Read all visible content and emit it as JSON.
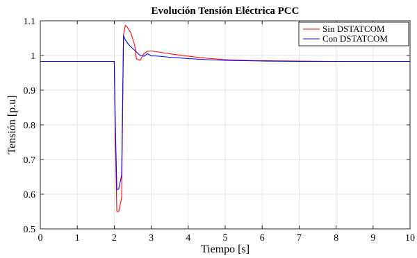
{
  "chart_data": {
    "type": "line",
    "title": "Evolución Tensión Eléctrica PCC",
    "xlabel": "Tiempo [s]",
    "ylabel": "Tensión [p.u]",
    "xlim": [
      0,
      10
    ],
    "ylim": [
      0.5,
      1.1
    ],
    "x_ticks": [
      0,
      1,
      2,
      3,
      4,
      5,
      6,
      7,
      8,
      9,
      10
    ],
    "y_ticks": [
      0.5,
      0.6,
      0.7,
      0.8,
      0.9,
      1,
      1.1
    ],
    "y_tick_labels": [
      "0.5",
      "0.6",
      "0.7",
      "0.8",
      "0.9",
      "1",
      "1.1"
    ],
    "grid": true,
    "legend_position": "top-right",
    "series": [
      {
        "name": "Sin DSTATCOM",
        "color": "#ff0000",
        "x": [
          0,
          1,
          2.0,
          2.03,
          2.07,
          2.12,
          2.2,
          2.25,
          2.3,
          2.35,
          2.45,
          2.55,
          2.6,
          2.7,
          2.8,
          2.9,
          3.0,
          3.2,
          3.5,
          4.0,
          4.5,
          5.0,
          5.5,
          6.0,
          7.0,
          8.0,
          9.0,
          10.0
        ],
        "y": [
          0.983,
          0.983,
          0.983,
          0.75,
          0.55,
          0.55,
          0.59,
          1.06,
          1.087,
          1.082,
          1.065,
          1.03,
          0.99,
          0.986,
          1.005,
          1.012,
          1.013,
          1.01,
          1.005,
          0.998,
          0.992,
          0.988,
          0.986,
          0.985,
          0.984,
          0.983,
          0.983,
          0.983
        ]
      },
      {
        "name": "Con DSTATCOM",
        "color": "#0000ff",
        "x": [
          0,
          1,
          2.0,
          2.03,
          2.07,
          2.12,
          2.2,
          2.25,
          2.3,
          2.4,
          2.5,
          2.6,
          2.7,
          2.8,
          2.9,
          3.0,
          3.2,
          3.5,
          4.0,
          4.5,
          5.0,
          5.5,
          6.0,
          7.0,
          8.0,
          9.0,
          10.0
        ],
        "y": [
          0.983,
          0.983,
          0.983,
          0.8,
          0.613,
          0.615,
          0.655,
          1.057,
          1.045,
          1.03,
          1.02,
          1.01,
          1.0,
          0.998,
          1.005,
          0.999,
          0.998,
          0.995,
          0.991,
          0.988,
          0.986,
          0.985,
          0.984,
          0.983,
          0.983,
          0.983,
          0.983
        ]
      }
    ]
  }
}
